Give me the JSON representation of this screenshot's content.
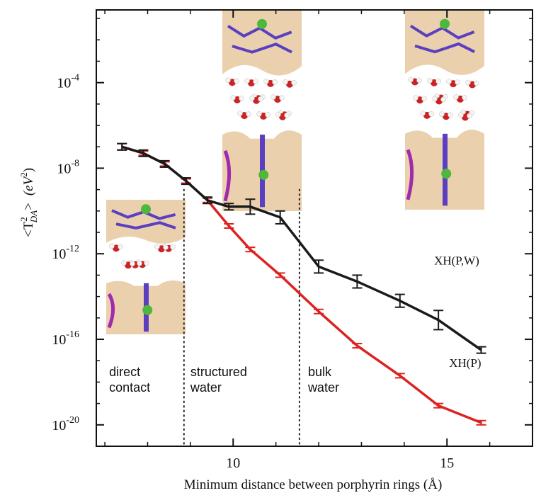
{
  "chart_data": {
    "type": "line",
    "title": "",
    "xlabel": "Minimum distance between porphyrin rings (Å)",
    "ylabel": "<T_DA^2> (eV^2)",
    "ylabel_parts": {
      "open": "<T",
      "sup": "2",
      "sub": "DA",
      "close": ">",
      "unit_open": "(eV",
      "unit_sup": "2",
      "unit_close": ")"
    },
    "xlim": [
      6.8,
      17.0
    ],
    "yscale": "log",
    "ylim_exp": [
      -21,
      -0.6
    ],
    "xticks": [
      10,
      15
    ],
    "xticks_minor": [
      7,
      8,
      9,
      11,
      12,
      13,
      14,
      16
    ],
    "yticks_exp": [
      -20,
      -16,
      -12,
      -8,
      -4
    ],
    "ytick_base": "10",
    "ytick_labels": [
      "-20",
      "-16",
      "-12",
      "-8",
      "-4"
    ],
    "xtick_labels": [
      "10",
      "15"
    ],
    "grid": false,
    "series": [
      {
        "name": "XH(P,W)",
        "color": "#1a1a1a",
        "x": [
          7.4,
          7.9,
          8.4,
          8.9,
          9.4,
          9.9,
          10.4,
          11.1,
          12.0,
          12.9,
          13.9,
          14.8,
          15.8
        ],
        "y_exp": [
          -7.0,
          -7.3,
          -7.8,
          -8.6,
          -9.5,
          -9.8,
          -9.8,
          -10.3,
          -12.6,
          -13.3,
          -14.2,
          -15.1,
          -16.5
        ],
        "err_exp": [
          0.15,
          0.15,
          0.15,
          0.15,
          0.15,
          0.15,
          0.35,
          0.3,
          0.3,
          0.3,
          0.3,
          0.45,
          0.15
        ]
      },
      {
        "name": "XH(P)",
        "color": "#dd2222",
        "x": [
          7.4,
          7.9,
          8.4,
          8.9,
          9.4,
          9.9,
          10.4,
          11.1,
          12.0,
          12.9,
          13.9,
          14.8,
          15.8
        ],
        "y_exp": [
          -7.0,
          -7.3,
          -7.8,
          -8.6,
          -9.5,
          -10.7,
          -11.8,
          -13.0,
          -14.7,
          -16.3,
          -17.7,
          -19.1,
          -19.9
        ],
        "err_exp": [
          0.15,
          0.1,
          0.1,
          0.1,
          0.1,
          0.1,
          0.1,
          0.1,
          0.1,
          0.1,
          0.1,
          0.1,
          0.1
        ]
      }
    ],
    "region_dividers": [
      8.85,
      11.55
    ],
    "region_labels": [
      {
        "lines": [
          "direct",
          "contact"
        ],
        "x": 7.1
      },
      {
        "lines": [
          "structured",
          "water"
        ],
        "x": 9.0
      },
      {
        "lines": [
          "bulk",
          "water"
        ],
        "x": 11.75
      }
    ],
    "series_labels": [
      {
        "text": "XH(P,W)",
        "x": 14.7,
        "y_exp": -12.3
      },
      {
        "text": "XH(P)",
        "x": 15.05,
        "y_exp": -17.1
      }
    ],
    "colors": {
      "protein_surface": "#e8c8a0",
      "porphyrin": "#5a3fc0",
      "helix": "#a02ab0",
      "metal": "#4db83a",
      "oxygen": "#cc2222",
      "hydrogen": "#f4f4f4"
    }
  }
}
